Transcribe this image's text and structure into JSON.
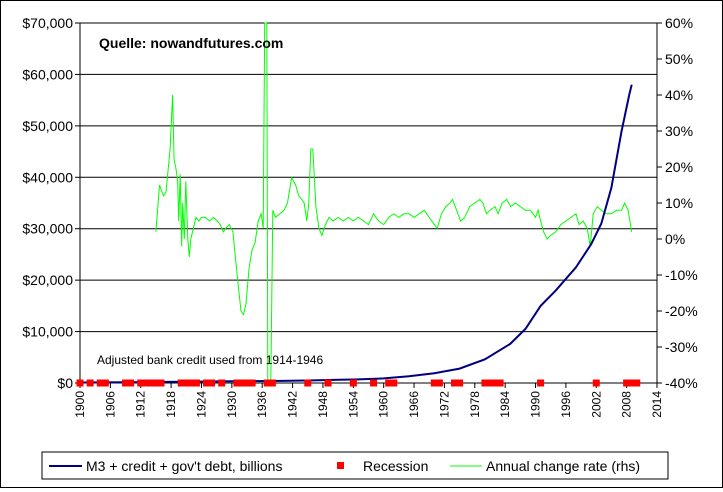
{
  "chart_data": {
    "type": "line",
    "source_label": "Quelle: nowandfutures.com",
    "annotation": "Adjusted bank credit used from 1914-1946",
    "x_range": [
      1900,
      2014
    ],
    "x_ticks": [
      "1900",
      "1906",
      "1912",
      "1918",
      "1924",
      "1930",
      "1936",
      "1942",
      "1948",
      "1954",
      "1960",
      "1966",
      "1972",
      "1978",
      "1984",
      "1990",
      "1996",
      "2002",
      "2008",
      "2014"
    ],
    "y_left": {
      "range": [
        0,
        70000
      ],
      "ticks": [
        "$0",
        "$10,000",
        "$20,000",
        "$30,000",
        "$40,000",
        "$50,000",
        "$60,000",
        "$70,000"
      ]
    },
    "y_right": {
      "range": [
        -40,
        60
      ],
      "ticks": [
        "-40%",
        "-30%",
        "-20%",
        "-10%",
        "0%",
        "10%",
        "20%",
        "30%",
        "40%",
        "50%",
        "60%"
      ]
    },
    "grid": "horizontal",
    "legend_position": "bottom",
    "series": [
      {
        "name": "M3 + credit + gov't debt, billions",
        "axis": "left",
        "color": "#00007f",
        "points": [
          [
            1900,
            100
          ],
          [
            1910,
            150
          ],
          [
            1920,
            250
          ],
          [
            1930,
            350
          ],
          [
            1940,
            400
          ],
          [
            1946,
            500
          ],
          [
            1950,
            600
          ],
          [
            1955,
            700
          ],
          [
            1960,
            900
          ],
          [
            1965,
            1300
          ],
          [
            1970,
            1900
          ],
          [
            1975,
            2800
          ],
          [
            1980,
            4600
          ],
          [
            1985,
            7600
          ],
          [
            1988,
            10500
          ],
          [
            1991,
            15000
          ],
          [
            1994,
            18000
          ],
          [
            1998,
            22500
          ],
          [
            2001,
            27000
          ],
          [
            2003,
            31000
          ],
          [
            2005,
            38000
          ],
          [
            2007,
            49000
          ],
          [
            2008.5,
            56000
          ],
          [
            2009,
            58000
          ]
        ]
      },
      {
        "name": "Recession",
        "axis": "left",
        "color": "#ff0000",
        "points": [
          [
            1900,
            0
          ],
          [
            1902,
            0
          ],
          [
            1904,
            0
          ],
          [
            1905,
            0
          ],
          [
            1909,
            0
          ],
          [
            1910,
            0
          ],
          [
            1912,
            0
          ],
          [
            1913,
            0
          ],
          [
            1914,
            0
          ],
          [
            1915,
            0
          ],
          [
            1916,
            0
          ],
          [
            1920,
            0
          ],
          [
            1921,
            0
          ],
          [
            1922,
            0
          ],
          [
            1923,
            0
          ],
          [
            1925,
            0
          ],
          [
            1926,
            0
          ],
          [
            1928,
            0
          ],
          [
            1931,
            0
          ],
          [
            1932,
            0
          ],
          [
            1933,
            0
          ],
          [
            1934,
            0
          ],
          [
            1937,
            0
          ],
          [
            1938,
            0
          ],
          [
            1945,
            0
          ],
          [
            1949,
            0
          ],
          [
            1954,
            0
          ],
          [
            1958,
            0
          ],
          [
            1961,
            0
          ],
          [
            1962,
            0
          ],
          [
            1970,
            0
          ],
          [
            1971,
            0
          ],
          [
            1974,
            0
          ],
          [
            1975,
            0
          ],
          [
            1980,
            0
          ],
          [
            1981,
            0
          ],
          [
            1982,
            0
          ],
          [
            1983,
            0
          ],
          [
            1991,
            0
          ],
          [
            2002,
            0
          ],
          [
            2008,
            0
          ],
          [
            2009,
            0
          ],
          [
            2010,
            0
          ]
        ]
      },
      {
        "name": "Annual change rate (rhs)",
        "axis": "right",
        "color": "#00ff00",
        "points": [
          [
            1915,
            2
          ],
          [
            1915.7,
            15
          ],
          [
            1916.5,
            12
          ],
          [
            1917,
            13
          ],
          [
            1917.8,
            25
          ],
          [
            1918.3,
            40
          ],
          [
            1918.6,
            22
          ],
          [
            1918.9,
            20
          ],
          [
            1919.3,
            16
          ],
          [
            1919.5,
            5
          ],
          [
            1919.8,
            18
          ],
          [
            1920.1,
            -2
          ],
          [
            1920.3,
            10
          ],
          [
            1920.6,
            0
          ],
          [
            1920.9,
            16
          ],
          [
            1921.3,
            0
          ],
          [
            1921.6,
            -5
          ],
          [
            1921.9,
            0
          ],
          [
            1922.4,
            3
          ],
          [
            1922.9,
            6
          ],
          [
            1923.5,
            5
          ],
          [
            1924,
            6
          ],
          [
            1924.8,
            6
          ],
          [
            1925.6,
            5
          ],
          [
            1926.4,
            6
          ],
          [
            1927.1,
            5
          ],
          [
            1927.7,
            4
          ],
          [
            1928.3,
            2
          ],
          [
            1928.8,
            3
          ],
          [
            1929.5,
            4
          ],
          [
            1930.2,
            2
          ],
          [
            1930.7,
            -5
          ],
          [
            1931.2,
            -12
          ],
          [
            1931.8,
            -20
          ],
          [
            1932.3,
            -21
          ],
          [
            1932.8,
            -18
          ],
          [
            1933.4,
            -8
          ],
          [
            1934,
            -3
          ],
          [
            1934.6,
            -1
          ],
          [
            1935.2,
            5
          ],
          [
            1935.8,
            7
          ],
          [
            1936.2,
            3
          ],
          [
            1936.5,
            60
          ],
          [
            1936.9,
            60
          ],
          [
            1937.1,
            -40
          ],
          [
            1937.7,
            -40
          ],
          [
            1938.1,
            8
          ],
          [
            1938.6,
            6
          ],
          [
            1939.5,
            7
          ],
          [
            1940.3,
            8
          ],
          [
            1941,
            10
          ],
          [
            1941.8,
            17
          ],
          [
            1942.6,
            15
          ],
          [
            1943.2,
            12
          ],
          [
            1943.8,
            11
          ],
          [
            1944.3,
            10
          ],
          [
            1944.8,
            5
          ],
          [
            1945.2,
            10
          ],
          [
            1945.6,
            25
          ],
          [
            1946,
            25
          ],
          [
            1946.6,
            9
          ],
          [
            1947.2,
            3
          ],
          [
            1947.8,
            1
          ],
          [
            1948.5,
            4
          ],
          [
            1949.2,
            6
          ],
          [
            1950,
            5
          ],
          [
            1951,
            6
          ],
          [
            1952,
            5
          ],
          [
            1953,
            6
          ],
          [
            1954,
            5
          ],
          [
            1955,
            6
          ],
          [
            1956,
            5
          ],
          [
            1957,
            4
          ],
          [
            1958,
            7
          ],
          [
            1959,
            5
          ],
          [
            1960,
            4
          ],
          [
            1961,
            6
          ],
          [
            1962,
            7
          ],
          [
            1963,
            6
          ],
          [
            1964,
            7
          ],
          [
            1965,
            7
          ],
          [
            1966,
            6
          ],
          [
            1967,
            7
          ],
          [
            1968,
            8
          ],
          [
            1969,
            6
          ],
          [
            1970,
            4
          ],
          [
            1970.6,
            3
          ],
          [
            1971.4,
            7
          ],
          [
            1972.3,
            9
          ],
          [
            1973.1,
            10
          ],
          [
            1973.6,
            11
          ],
          [
            1974.4,
            8
          ],
          [
            1975.2,
            5
          ],
          [
            1976,
            6
          ],
          [
            1977,
            9
          ],
          [
            1978,
            10
          ],
          [
            1979,
            11
          ],
          [
            1979.6,
            10
          ],
          [
            1980.3,
            7
          ],
          [
            1981,
            8
          ],
          [
            1982,
            9
          ],
          [
            1982.6,
            7
          ],
          [
            1983.4,
            10
          ],
          [
            1984.3,
            11
          ],
          [
            1985.1,
            9
          ],
          [
            1986,
            10
          ],
          [
            1987,
            9
          ],
          [
            1988,
            8
          ],
          [
            1989,
            8
          ],
          [
            1990,
            6
          ],
          [
            1990.5,
            8
          ],
          [
            1991,
            5
          ],
          [
            1991.6,
            2
          ],
          [
            1992.3,
            0
          ],
          [
            1993,
            1
          ],
          [
            1994,
            2
          ],
          [
            1995,
            4
          ],
          [
            1996,
            5
          ],
          [
            1997,
            6
          ],
          [
            1998,
            7
          ],
          [
            1998.6,
            4
          ],
          [
            1999.4,
            5
          ],
          [
            2000.2,
            3
          ],
          [
            2000.8,
            -2
          ],
          [
            2001.4,
            7
          ],
          [
            2002.2,
            9
          ],
          [
            2003,
            8
          ],
          [
            2004,
            7
          ],
          [
            2005,
            7
          ],
          [
            2006,
            8
          ],
          [
            2007,
            8
          ],
          [
            2007.6,
            10
          ],
          [
            2008.3,
            8
          ],
          [
            2009,
            2
          ]
        ]
      }
    ]
  }
}
